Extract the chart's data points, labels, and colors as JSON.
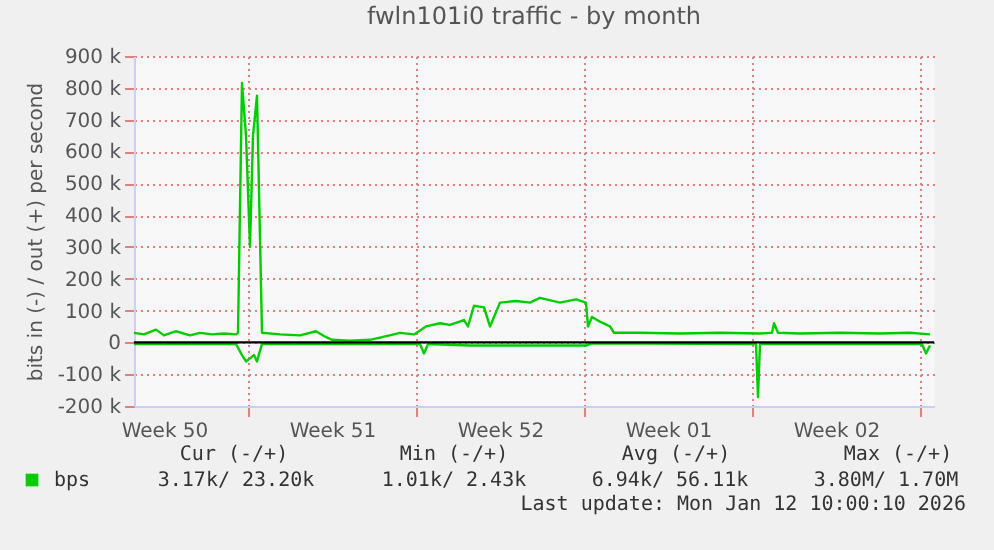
{
  "chart_data": {
    "type": "line",
    "title": "fwln101i0 traffic - by month",
    "ylabel": "bits in (-) / out (+) per second",
    "series": [
      {
        "name": "bps",
        "color": "#00cc00",
        "x": [
          "2025-12-10T06:00",
          "2025-12-10T16:00",
          "2025-12-11T04:00",
          "2025-12-11T12:00",
          "2025-12-12T00:00",
          "2025-12-12T14:00",
          "2025-12-13T00:00",
          "2025-12-13T12:00",
          "2025-12-14T00:00",
          "2025-12-14T12:00",
          "2025-12-14T14:00",
          "2025-12-14T18:00",
          "2025-12-14T22:00",
          "2025-12-15T02:00",
          "2025-12-15T05:00",
          "2025-12-15T09:00",
          "2025-12-15T14:00",
          "2025-12-16T08:00",
          "2025-12-17T04:00",
          "2025-12-17T20:00",
          "2025-12-18T04:00",
          "2025-12-18T12:00",
          "2025-12-19T06:00",
          "2025-12-20T02:00",
          "2025-12-20T12:00",
          "2025-12-21T08:00",
          "2025-12-21T22:00",
          "2025-12-22T10:00",
          "2025-12-23T00:00",
          "2025-12-23T10:00",
          "2025-12-24T00:00",
          "2025-12-24T04:00",
          "2025-12-24T10:00",
          "2025-12-24T20:00",
          "2025-12-25T02:00",
          "2025-12-25T12:00",
          "2025-12-26T04:00",
          "2025-12-26T18:00",
          "2025-12-27T04:00",
          "2025-12-28T00:00",
          "2025-12-28T16:00",
          "2025-12-29T02:00",
          "2025-12-29T04:00",
          "2025-12-29T08:00",
          "2025-12-29T16:00",
          "2025-12-30T02:00",
          "2025-12-30T06:00",
          "2025-12-31T08:00",
          "2026-01-02T00:00",
          "2026-01-03T16:00",
          "2026-01-05T08:00",
          "2026-01-05T20:00",
          "2026-01-05T22:00",
          "2026-01-06T02:00",
          "2026-01-07T00:00",
          "2026-01-08T16:00",
          "2026-01-10T08:00",
          "2026-01-11T14:00",
          "2026-01-12T10:00"
        ],
        "values": [
          30000,
          25000,
          40000,
          22000,
          35000,
          22000,
          30000,
          25000,
          28000,
          25000,
          30000,
          815000,
          650000,
          300000,
          650000,
          775000,
          30000,
          25000,
          22000,
          35000,
          20000,
          8000,
          5000,
          8000,
          15000,
          30000,
          25000,
          50000,
          60000,
          55000,
          70000,
          50000,
          115000,
          110000,
          50000,
          125000,
          130000,
          125000,
          140000,
          125000,
          135000,
          125000,
          50000,
          80000,
          65000,
          50000,
          30000,
          30000,
          28000,
          30000,
          28000,
          30000,
          60000,
          30000,
          28000,
          30000,
          28000,
          30000,
          25000
        ]
      },
      {
        "color": "#00cc00",
        "x": [
          "2025-12-10T06:00",
          "2025-12-14T12:00",
          "2025-12-14T18:00",
          "2025-12-14T22:00",
          "2025-12-15T06:00",
          "2025-12-15T09:00",
          "2025-12-15T14:00",
          "2025-12-22T04:00",
          "2025-12-22T08:00",
          "2025-12-22T12:00",
          "2025-12-24T06:00",
          "2025-12-29T02:00",
          "2025-12-29T08:00",
          "2026-01-05T04:00",
          "2026-01-05T06:00",
          "2026-01-05T08:00",
          "2026-01-12T02:00",
          "2026-01-12T06:00",
          "2026-01-12T10:00"
        ],
        "values": [
          -5000,
          -5000,
          -40000,
          -60000,
          -40000,
          -60000,
          -5000,
          -5000,
          -35000,
          -5000,
          -10000,
          -10000,
          -3000,
          -5000,
          -172000,
          -5000,
          -5000,
          -35000,
          -10000
        ]
      }
    ],
    "xlim": [
      "2025-12-10T06:00",
      "2026-01-12T14:00"
    ],
    "xticks": [
      {
        "value": "2025-12-11T12:00",
        "label": "Week 50"
      },
      {
        "value": "2025-12-15T00:00",
        "label": null
      },
      {
        "value": "2025-12-18T12:00",
        "label": "Week 51"
      },
      {
        "value": "2025-12-22T00:00",
        "label": null
      },
      {
        "value": "2025-12-25T12:00",
        "label": "Week 52"
      },
      {
        "value": "2025-12-29T00:00",
        "label": null
      },
      {
        "value": "2026-01-01T12:00",
        "label": "Week 01"
      },
      {
        "value": "2026-01-05T00:00",
        "label": null
      },
      {
        "value": "2026-01-08T12:00",
        "label": "Week 02"
      },
      {
        "value": "2026-01-12T00:00",
        "label": null
      }
    ],
    "ylim": [
      -200000,
      900000
    ],
    "yticks": [
      {
        "value": -200000,
        "label": "-200 k"
      },
      {
        "value": -100000,
        "label": "-100 k"
      },
      0,
      {
        "value": 100000,
        "label": "100 k"
      },
      {
        "value": 200000,
        "label": "200 k"
      },
      {
        "value": 300000,
        "label": "300 k"
      },
      {
        "value": 400000,
        "label": "400 k"
      },
      {
        "value": 500000,
        "label": "500 k"
      },
      {
        "value": 600000,
        "label": "600 k"
      },
      {
        "value": 700000,
        "label": "700 k"
      },
      {
        "value": 800000,
        "label": "800 k"
      },
      {
        "value": 900000,
        "label": "900 k"
      }
    ],
    "grid": true,
    "legend": "bottom",
    "marker": "none",
    "line_style": "solid",
    "ref_lines": [
      {
        "axis": "y",
        "value": 0,
        "color": "#000000"
      }
    ],
    "annotations": [
      "Cur (-/+)",
      "Min (-/+)",
      "Avg (-/+)",
      "Max (-/+)",
      "3.17k/ 23.20k",
      "1.01k/   2.43k",
      "6.94k/ 56.11k",
      "3.80M/   1.70M",
      "Last update: Mon Jan 12 10:00:10 2026"
    ]
  }
}
